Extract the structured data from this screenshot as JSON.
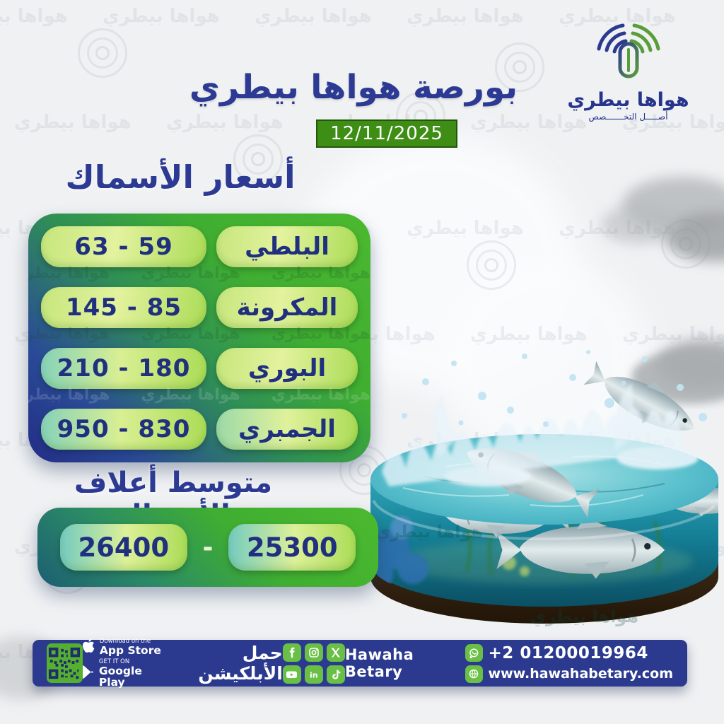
{
  "poster": {
    "title": "بورصة هواها بيطري",
    "date": "12/11/2025"
  },
  "logo": {
    "name": "هواها بيطري",
    "tagline": "أصـــــل التخـــــــصص"
  },
  "watermark": {
    "text": "هواها بيطري"
  },
  "fish_prices": {
    "heading": "أسعار الأسماك",
    "rows": [
      {
        "name": "البلطي",
        "range": "59 - 63"
      },
      {
        "name": "المكرونة",
        "range": "85 - 145"
      },
      {
        "name": "البوري",
        "range": "180 - 210"
      },
      {
        "name": "الجمبري",
        "range": "830 - 950"
      }
    ]
  },
  "feed": {
    "heading": "متوسط أعلاف الأسماك",
    "min": "25300",
    "separator": "-",
    "max": "26400"
  },
  "footer": {
    "download_label": "حمل الأبلكيشن",
    "app_store_pre": "Download on the",
    "app_store_name": "App Store",
    "google_play_pre": "GET IT ON",
    "google_play_name": "Google Play",
    "brand": "Hawaha Betary",
    "phone": "+2 01200019964",
    "website": "www.hawahabetary.com",
    "social_icons": [
      "facebook",
      "instagram",
      "x",
      "youtube",
      "linkedin",
      "tiktok"
    ],
    "contact_icons": [
      "whatsapp",
      "website-globe"
    ]
  },
  "chart_data": {
    "type": "table",
    "title": "أسعار الأسماك",
    "columns": [
      "fish",
      "price_min",
      "price_max"
    ],
    "rows": [
      [
        "البلطي",
        59,
        63
      ],
      [
        "المكرونة",
        85,
        145
      ],
      [
        "البوري",
        180,
        210
      ],
      [
        "الجمبري",
        830,
        950
      ]
    ],
    "feed_average_range": [
      25300,
      26400
    ]
  },
  "colors": {
    "navy": "#2b3a8f",
    "panel_green": "#43b02a",
    "date_green": "#3e8e15",
    "pill_lime": "#d9ef92",
    "pill_teal": "#74cbc0",
    "social_green": "#6abf45",
    "qr_green": "#55b02e",
    "text_navy": "#20307f"
  }
}
